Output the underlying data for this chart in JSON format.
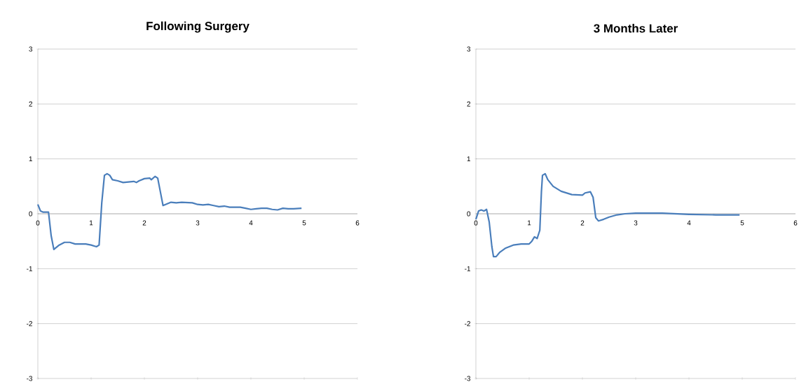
{
  "chart_data": [
    {
      "type": "line",
      "title": "Following Surgery",
      "xlim": [
        0,
        6
      ],
      "xticks": [
        0,
        1,
        2,
        3,
        4,
        5,
        6
      ],
      "ylim": [
        -3,
        3
      ],
      "yticks": [
        -3,
        -2,
        -1,
        0,
        1,
        2,
        3
      ],
      "grid": "y",
      "series": [
        {
          "color": "#4a7ebb",
          "x": [
            0,
            0.05,
            0.1,
            0.2,
            0.25,
            0.3,
            0.4,
            0.5,
            0.6,
            0.7,
            0.8,
            0.9,
            1.0,
            1.1,
            1.15,
            1.2,
            1.25,
            1.3,
            1.35,
            1.4,
            1.5,
            1.6,
            1.8,
            1.85,
            1.9,
            2.0,
            2.1,
            2.13,
            2.2,
            2.25,
            2.3,
            2.35,
            2.5,
            2.6,
            2.7,
            2.9,
            3.0,
            3.1,
            3.2,
            3.3,
            3.4,
            3.5,
            3.6,
            3.8,
            3.9,
            4.0,
            4.1,
            4.2,
            4.3,
            4.4,
            4.5,
            4.6,
            4.7,
            4.8,
            4.95
          ],
          "values": [
            0.17,
            0.05,
            0.03,
            0.03,
            -0.4,
            -0.65,
            -0.57,
            -0.52,
            -0.52,
            -0.55,
            -0.55,
            -0.55,
            -0.57,
            -0.6,
            -0.57,
            0.2,
            0.7,
            0.73,
            0.7,
            0.62,
            0.6,
            0.57,
            0.59,
            0.57,
            0.6,
            0.64,
            0.65,
            0.62,
            0.68,
            0.65,
            0.4,
            0.15,
            0.21,
            0.2,
            0.21,
            0.2,
            0.17,
            0.16,
            0.17,
            0.15,
            0.13,
            0.14,
            0.12,
            0.12,
            0.1,
            0.08,
            0.09,
            0.1,
            0.1,
            0.08,
            0.07,
            0.1,
            0.09,
            0.09,
            0.1
          ]
        }
      ]
    },
    {
      "type": "line",
      "title": "3 Months Later",
      "xlim": [
        0,
        6
      ],
      "xticks": [
        0,
        1,
        2,
        3,
        4,
        5,
        6
      ],
      "ylim": [
        -3,
        3
      ],
      "yticks": [
        -3,
        -2,
        -1,
        0,
        1,
        2,
        3
      ],
      "grid": "y",
      "series": [
        {
          "color": "#4a7ebb",
          "x": [
            0,
            0.05,
            0.1,
            0.15,
            0.2,
            0.25,
            0.3,
            0.33,
            0.38,
            0.45,
            0.55,
            0.7,
            0.85,
            1.0,
            1.05,
            1.1,
            1.15,
            1.2,
            1.23,
            1.25,
            1.3,
            1.35,
            1.45,
            1.6,
            1.8,
            2.0,
            2.05,
            2.15,
            2.2,
            2.25,
            2.3,
            2.4,
            2.5,
            2.65,
            2.8,
            3.0,
            3.5,
            4.0,
            4.5,
            4.95
          ],
          "values": [
            -0.1,
            0.05,
            0.07,
            0.05,
            0.08,
            -0.15,
            -0.6,
            -0.78,
            -0.78,
            -0.7,
            -0.63,
            -0.57,
            -0.55,
            -0.55,
            -0.5,
            -0.42,
            -0.45,
            -0.3,
            0.4,
            0.7,
            0.73,
            0.62,
            0.5,
            0.41,
            0.35,
            0.34,
            0.38,
            0.4,
            0.3,
            -0.07,
            -0.13,
            -0.1,
            -0.06,
            -0.02,
            0,
            0.01,
            0.01,
            -0.01,
            -0.02,
            -0.02
          ]
        }
      ]
    }
  ]
}
